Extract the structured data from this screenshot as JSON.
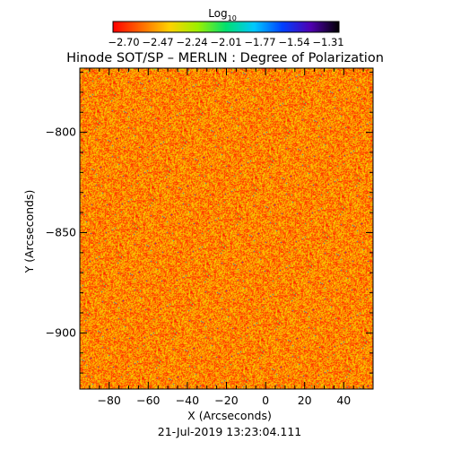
{
  "chart_data": {
    "type": "heatmap",
    "title": "Hinode SOT/SP – MERLIN : Degree of Polarization",
    "xlabel": "X (Arcseconds)",
    "ylabel": "Y (Arcseconds)",
    "timestamp": "21-Jul-2019 13:23:04.111",
    "xlim": [
      -95,
      55
    ],
    "ylim": [
      -928,
      -768
    ],
    "xticks": [
      -80,
      -60,
      -40,
      -20,
      0,
      20,
      40
    ],
    "yticks": [
      -800,
      -850,
      -900
    ],
    "colorbar": {
      "label_base": "Log",
      "label_sub": "10",
      "ticks": [
        "-2.70",
        "-2.47",
        "-2.24",
        "-2.01",
        "-1.77",
        "-1.54",
        "-1.31"
      ],
      "range": [
        -2.7,
        -1.31
      ],
      "colormap": [
        "#ff0000",
        "#ff6a00",
        "#ffd200",
        "#9cf000",
        "#00e070",
        "#00c8ff",
        "#0040ff",
        "#5000b0",
        "#000000"
      ]
    },
    "field_description_values": {
      "typical_log10_range": [
        -2.65,
        -2.3
      ],
      "sparse_high_values_range": [
        -2.1,
        -1.6
      ]
    }
  }
}
